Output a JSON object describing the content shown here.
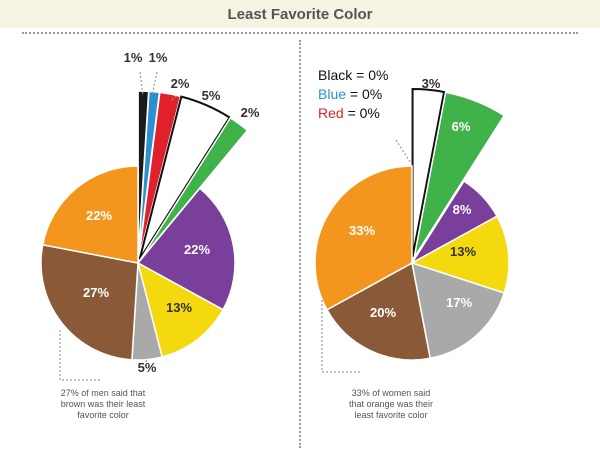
{
  "header": {
    "title": "Least Favorite Color"
  },
  "colors": {
    "black": "#1a1a1a",
    "blue": "#2b8fd0",
    "red": "#e0202a",
    "white": "#ffffff",
    "green": "#3fb24a",
    "purple": "#7a3f9a",
    "yellow": "#f5d90f",
    "gray": "#a9a9a9",
    "brown": "#8a5a38",
    "orange": "#f4961e"
  },
  "chart_data": [
    {
      "type": "pie",
      "title": "",
      "categories": [
        "Black",
        "Blue",
        "Red",
        "White",
        "Green",
        "Purple",
        "Yellow",
        "Gray",
        "Brown",
        "Orange"
      ],
      "values": [
        1,
        1,
        2,
        5,
        2,
        22,
        13,
        5,
        27,
        22
      ],
      "labels": [
        "1%",
        "1%",
        "2%",
        "5%",
        "2%",
        "22%",
        "13%",
        "5%",
        "27%",
        "22%"
      ],
      "annotation": "27% of men said that brown was their least favorite color"
    },
    {
      "type": "pie",
      "title": "",
      "categories": [
        "Black",
        "Blue",
        "Red",
        "White",
        "Green",
        "Purple",
        "Yellow",
        "Gray",
        "Brown",
        "Orange"
      ],
      "values": [
        0,
        0,
        0,
        3,
        6,
        8,
        13,
        17,
        20,
        33
      ],
      "labels": [
        "0%",
        "0%",
        "0%",
        "3%",
        "6%",
        "8%",
        "13%",
        "17%",
        "20%",
        "33%"
      ],
      "annotation": "33% of women said that orange was their least favorite color"
    }
  ],
  "zero_legend": [
    {
      "name": "Black",
      "value": "= 0%"
    },
    {
      "name": "Blue",
      "value": "= 0%"
    },
    {
      "name": "Red",
      "value": "= 0%"
    }
  ],
  "notes": {
    "men": [
      "27% of men said that",
      "brown was their least",
      "favorite color"
    ],
    "women": [
      "33% of women said",
      "that orange was their",
      "least favorite color"
    ]
  }
}
